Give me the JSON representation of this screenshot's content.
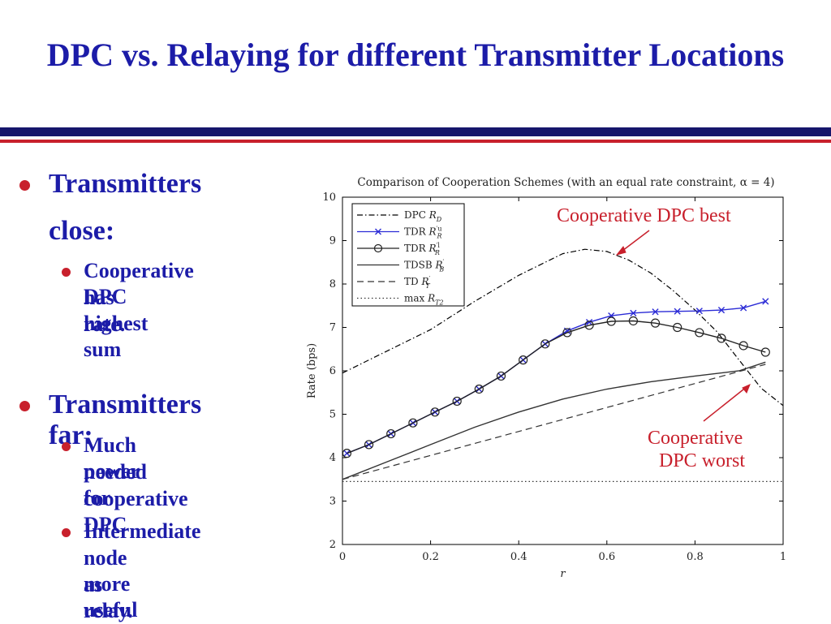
{
  "slide": {
    "title": "DPC vs. Relaying for different Transmitter Locations",
    "accent_blue": "#1c1ca8",
    "accent_red": "#c8202c"
  },
  "bullets": [
    {
      "text_line1": "Transmitters",
      "text_line2": "close:",
      "sub": [
        {
          "line1": "Cooperative DPC",
          "line2": "has highest sum",
          "line3": "rate."
        }
      ]
    },
    {
      "text_line1": "Transmitters far:",
      "sub": [
        {
          "line1": "Much power",
          "line2": "needed for",
          "line3": "cooperative DPC"
        },
        {
          "line1": "Intermediate",
          "line2": "node more useful",
          "line3": "as relay."
        }
      ]
    }
  ],
  "annotations": {
    "best": "Cooperative DPC best",
    "worst_line1": "Cooperative",
    "worst_line2": "DPC worst"
  },
  "chart_data": {
    "type": "line",
    "title": "Comparison of Cooperation Schemes (with an equal rate constraint, α = 4)",
    "xlabel": "r",
    "ylabel": "Rate (bps)",
    "xlim": [
      0,
      1
    ],
    "ylim": [
      2,
      10
    ],
    "xticks": [
      0,
      0.2,
      0.4,
      0.6,
      0.8,
      1
    ],
    "yticks": [
      2,
      3,
      4,
      5,
      6,
      7,
      8,
      9,
      10
    ],
    "legend_position": "top-left",
    "series": [
      {
        "name": "DPC R_D",
        "legend_main": "DPC",
        "legend_sym": "R",
        "legend_sub": "D",
        "legend_sup": "",
        "style": "dashdot",
        "color": "#000000",
        "marker": "none",
        "x": [
          0,
          0.1,
          0.2,
          0.3,
          0.4,
          0.45,
          0.5,
          0.55,
          0.6,
          0.65,
          0.7,
          0.75,
          0.8,
          0.85,
          0.9,
          0.95,
          1.0
        ],
        "y": [
          5.95,
          6.45,
          6.95,
          7.6,
          8.2,
          8.45,
          8.7,
          8.8,
          8.75,
          8.55,
          8.25,
          7.85,
          7.4,
          6.9,
          6.25,
          5.6,
          5.2
        ]
      },
      {
        "name": "TDR R'_R^u",
        "legend_main": "TDR",
        "legend_sym": "R",
        "legend_sub": "R",
        "legend_sup": "′u",
        "style": "solid",
        "color": "#2b2bd6",
        "marker": "x",
        "x": [
          0.01,
          0.06,
          0.11,
          0.16,
          0.21,
          0.26,
          0.31,
          0.36,
          0.41,
          0.46,
          0.51,
          0.56,
          0.61,
          0.66,
          0.71,
          0.76,
          0.81,
          0.86,
          0.91,
          0.96
        ],
        "y": [
          4.1,
          4.3,
          4.55,
          4.8,
          5.05,
          5.3,
          5.58,
          5.88,
          6.25,
          6.62,
          6.92,
          7.12,
          7.27,
          7.33,
          7.36,
          7.37,
          7.38,
          7.4,
          7.45,
          7.6
        ]
      },
      {
        "name": "TDR R'_R^l",
        "legend_main": "TDR",
        "legend_sym": "R",
        "legend_sub": "R",
        "legend_sup": "′l",
        "style": "solid",
        "color": "#222222",
        "marker": "circle",
        "x": [
          0.01,
          0.06,
          0.11,
          0.16,
          0.21,
          0.26,
          0.31,
          0.36,
          0.41,
          0.46,
          0.51,
          0.56,
          0.61,
          0.66,
          0.71,
          0.76,
          0.81,
          0.86,
          0.91,
          0.96
        ],
        "y": [
          4.1,
          4.3,
          4.55,
          4.8,
          5.05,
          5.3,
          5.58,
          5.88,
          6.25,
          6.62,
          6.88,
          7.05,
          7.14,
          7.15,
          7.1,
          7.0,
          6.88,
          6.75,
          6.58,
          6.43
        ]
      },
      {
        "name": "TDSB R'_B",
        "legend_main": "TDSB",
        "legend_sym": "R",
        "legend_sub": "B",
        "legend_sup": "′",
        "style": "solid",
        "color": "#333333",
        "marker": "none",
        "x": [
          0,
          0.1,
          0.2,
          0.3,
          0.4,
          0.5,
          0.6,
          0.7,
          0.8,
          0.9,
          0.96
        ],
        "y": [
          3.5,
          3.9,
          4.3,
          4.7,
          5.05,
          5.35,
          5.58,
          5.75,
          5.88,
          6.0,
          6.2
        ]
      },
      {
        "name": "TD R'_T",
        "legend_main": "TD",
        "legend_sym": "R",
        "legend_sub": "T",
        "legend_sup": "′",
        "style": "dashed",
        "color": "#333333",
        "marker": "none",
        "x": [
          0,
          0.96
        ],
        "y": [
          3.5,
          6.15
        ]
      },
      {
        "name": "max R_T2",
        "legend_main": "max",
        "legend_sym": "R",
        "legend_sub": "T2",
        "legend_sup": "",
        "style": "dotted",
        "color": "#333333",
        "marker": "none",
        "x": [
          0,
          1.0
        ],
        "y": [
          3.45,
          3.45
        ]
      }
    ]
  }
}
